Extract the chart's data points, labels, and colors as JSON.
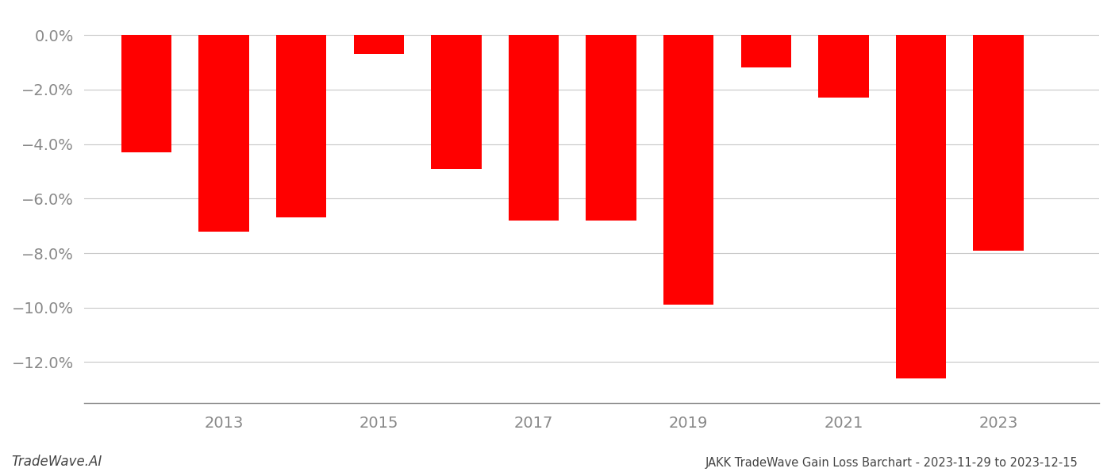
{
  "years": [
    2012,
    2013,
    2014,
    2015,
    2016,
    2017,
    2018,
    2019,
    2020,
    2021,
    2022,
    2023
  ],
  "values": [
    -0.043,
    -0.072,
    -0.067,
    -0.007,
    -0.049,
    -0.068,
    -0.068,
    -0.099,
    -0.012,
    -0.023,
    -0.126,
    -0.079
  ],
  "bar_color": "#ff0000",
  "background_color": "#ffffff",
  "grid_color": "#c8c8c8",
  "title": "JAKK TradeWave Gain Loss Barchart - 2023-11-29 to 2023-12-15",
  "watermark": "TradeWave.AI",
  "ylim": [
    -0.135,
    0.005
  ],
  "ytick_values": [
    0.0,
    -0.02,
    -0.04,
    -0.06,
    -0.08,
    -0.1,
    -0.12
  ],
  "ytick_labels": [
    "0.0%",
    "−2.0%",
    "−4.0%",
    "−6.0%",
    "−8.0%",
    "−10.0%",
    "−12.0%"
  ],
  "xtick_labels": [
    "2013",
    "2015",
    "2017",
    "2019",
    "2021",
    "2023"
  ],
  "xtick_year_positions": [
    2013,
    2015,
    2017,
    2019,
    2021,
    2023
  ]
}
